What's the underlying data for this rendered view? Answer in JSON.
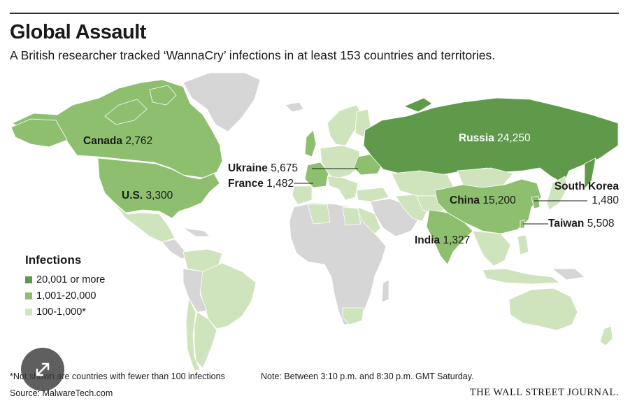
{
  "header": {
    "title": "Global Assault",
    "subtitle": "A British researcher tracked ‘WannaCry’ infections in at least 153 countries and territories."
  },
  "labels": {
    "canada": {
      "name": "Canada",
      "value": "2,762"
    },
    "us": {
      "name": "U.S.",
      "value": "3,300"
    },
    "ukraine": {
      "name": "Ukraine",
      "value": "5,675"
    },
    "france": {
      "name": "France",
      "value": "1,482"
    },
    "russia": {
      "name": "Russia",
      "value": "24,250"
    },
    "china": {
      "name": "China",
      "value": "15,200"
    },
    "india": {
      "name": "India",
      "value": "1,327"
    },
    "south_korea": {
      "name": "South Korea",
      "value": "1,480"
    },
    "taiwan": {
      "name": "Taiwan",
      "value": "5,508"
    }
  },
  "legend": {
    "title": "Infections",
    "items": [
      {
        "label": "20,001 or more",
        "color": "#5e9a4a"
      },
      {
        "label": "1,001-20,000",
        "color": "#8dbf6f"
      },
      {
        "label": "100-1,000*",
        "color": "#cfe4bd"
      }
    ]
  },
  "colors": {
    "no_data": "#d6d6d6",
    "tier_high": "#5e9a4a",
    "tier_mid": "#8dbf6f",
    "tier_low": "#cfe4bd"
  },
  "footer": {
    "footnote": "*Not shown are countries with fewer than 100 infections",
    "note": "Note: Between 3:10 p.m. and 8:30 p.m. GMT Saturday.",
    "source": "Source: MalwareTech.com",
    "credit": "THE WALL STREET JOURNAL."
  },
  "icons": {
    "expand": "expand-arrows-icon"
  }
}
